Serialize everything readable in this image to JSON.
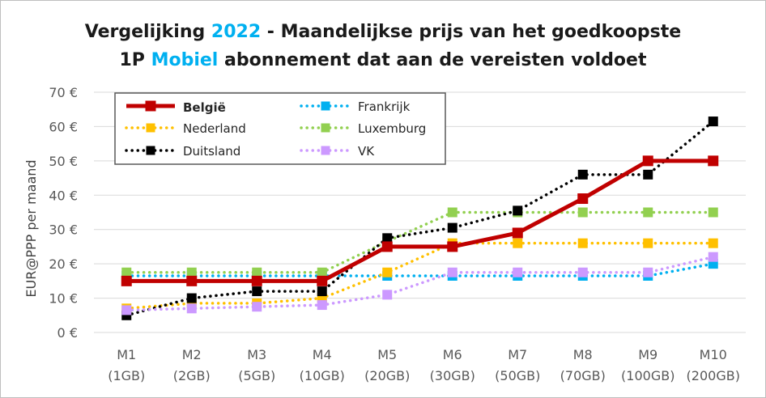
{
  "chart_data": {
    "type": "line",
    "title": {
      "line1": [
        {
          "text": "Vergelijking ",
          "color": "#1a1a1a"
        },
        {
          "text": "2022",
          "color": "#00b0f0"
        },
        {
          "text": " - Maandelijkse prijs van het goedkoopste",
          "color": "#1a1a1a"
        }
      ],
      "line2": [
        {
          "text": "1P ",
          "color": "#1a1a1a"
        },
        {
          "text": "Mobiel",
          "color": "#00b0f0"
        },
        {
          "text": " abonnement dat aan de vereisten voldoet",
          "color": "#1a1a1a"
        }
      ]
    },
    "ylabel": "EUR@PPP per maand",
    "xlabel": "",
    "ylim": [
      0,
      70
    ],
    "yticks": [
      0,
      10,
      20,
      30,
      40,
      50,
      60,
      70
    ],
    "ytick_suffix": " €",
    "grid": true,
    "legend_position": "top-left",
    "categories": [
      {
        "label": "M1",
        "sub": "(1GB)"
      },
      {
        "label": "M2",
        "sub": "(2GB)"
      },
      {
        "label": "M3",
        "sub": "(5GB)"
      },
      {
        "label": "M4",
        "sub": "(10GB)"
      },
      {
        "label": "M5",
        "sub": "(20GB)"
      },
      {
        "label": "M6",
        "sub": "(30GB)"
      },
      {
        "label": "M7",
        "sub": "(50GB)"
      },
      {
        "label": "M8",
        "sub": "(70GB)"
      },
      {
        "label": "M9",
        "sub": "(100GB)"
      },
      {
        "label": "M10",
        "sub": "(200GB)"
      }
    ],
    "series": [
      {
        "name": "Frankrijk",
        "color": "#00b0f0",
        "style": "dotted",
        "values": [
          16.5,
          16.5,
          16.5,
          16.5,
          16.5,
          16.5,
          16.5,
          16.5,
          16.5,
          20
        ]
      },
      {
        "name": "Nederland",
        "color": "#ffc000",
        "style": "dotted",
        "values": [
          7,
          8.5,
          8.5,
          10,
          17.5,
          26,
          26,
          26,
          26,
          26
        ]
      },
      {
        "name": "Luxemburg",
        "color": "#92d050",
        "style": "dotted",
        "values": [
          17.5,
          17.5,
          17.5,
          17.5,
          26.5,
          35,
          35,
          35,
          35,
          35
        ]
      },
      {
        "name": "Duitsland",
        "color": "#000000",
        "style": "dotted",
        "values": [
          5,
          10,
          12,
          12,
          27.5,
          30.5,
          35.5,
          46,
          46,
          61.5
        ]
      },
      {
        "name": "VK",
        "color": "#cc99ff",
        "style": "dotted",
        "values": [
          6.5,
          7,
          7.5,
          8,
          11,
          17.5,
          17.5,
          17.5,
          17.5,
          22
        ]
      },
      {
        "name": "België",
        "color": "#c00000",
        "style": "solid",
        "values": [
          15,
          15,
          15,
          15,
          25,
          25,
          29,
          39,
          50,
          50
        ]
      }
    ],
    "legend": [
      {
        "name": "België",
        "color": "#c00000",
        "style": "solid",
        "emphasis": true
      },
      {
        "name": "Frankrijk",
        "color": "#00b0f0",
        "style": "dotted"
      },
      {
        "name": "Nederland",
        "color": "#ffc000",
        "style": "dotted"
      },
      {
        "name": "Luxemburg",
        "color": "#92d050",
        "style": "dotted"
      },
      {
        "name": "Duitsland",
        "color": "#000000",
        "style": "dotted"
      },
      {
        "name": "VK",
        "color": "#cc99ff",
        "style": "dotted"
      }
    ]
  }
}
